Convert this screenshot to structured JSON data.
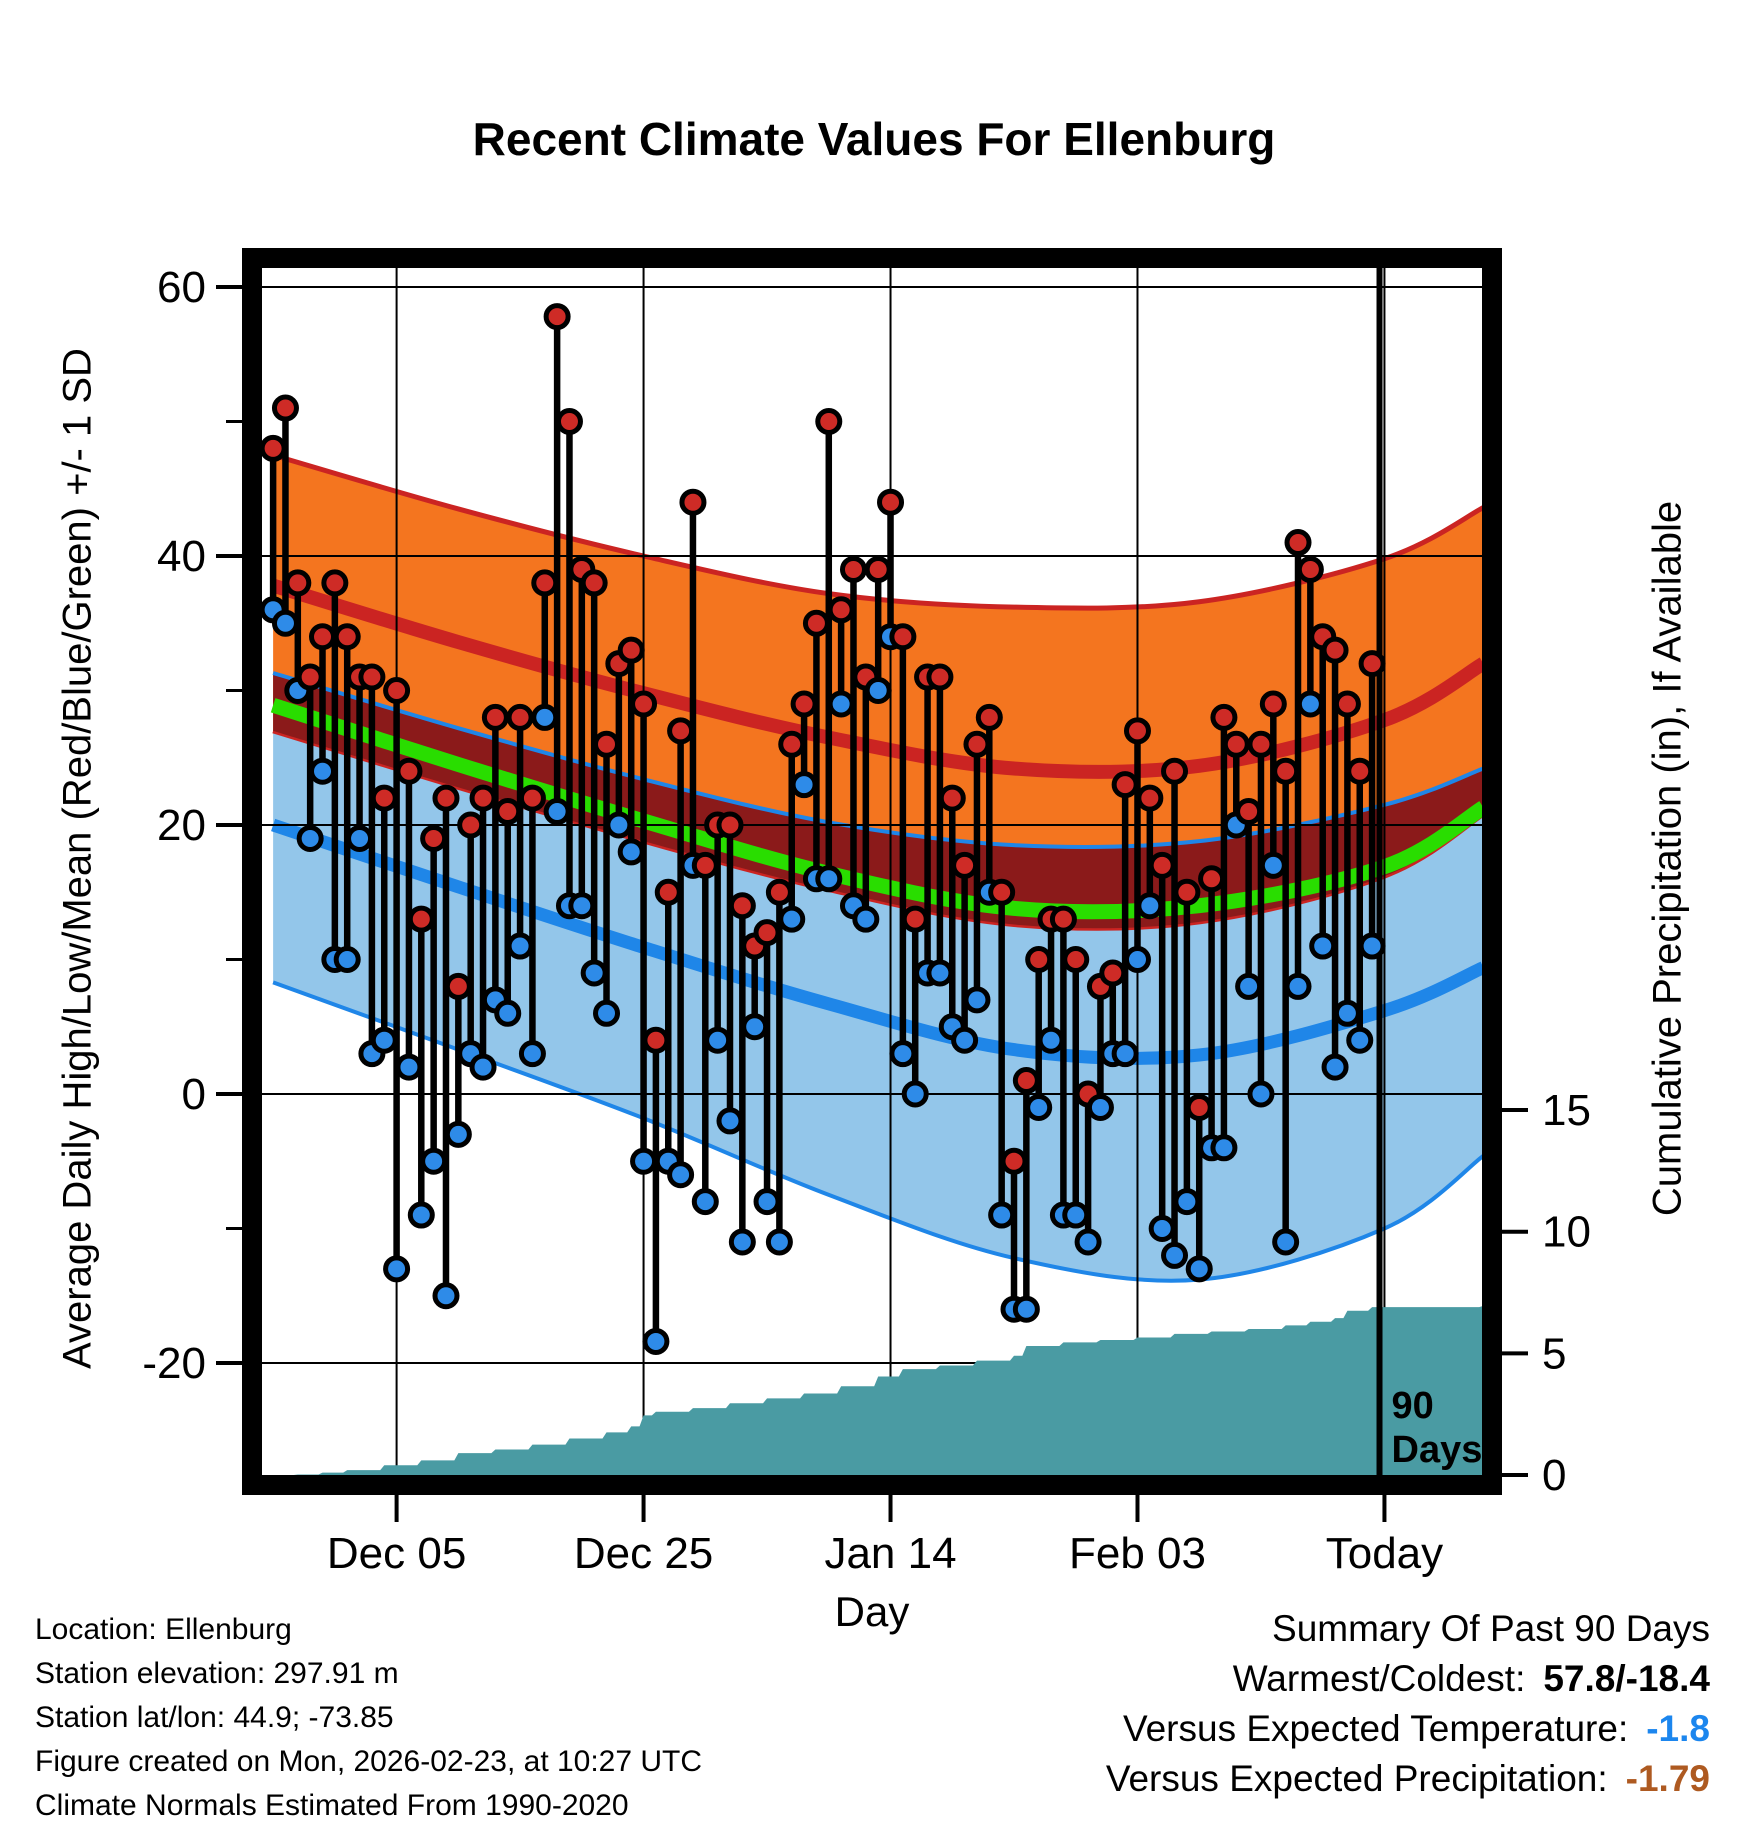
{
  "title": "Recent Climate Values For Ellenburg",
  "colors": {
    "high_band_fill": "#F4751F",
    "high_line": "#CB2422",
    "overlap_fill": "#8B1A1A",
    "mean_line": "#29DD00",
    "low_band_fill": "#93C6EA",
    "low_line": "#1F86E8",
    "marker_high": "#CE2B26",
    "marker_low": "#2E8BE8",
    "precip_fill": "#4A9BA3",
    "summary_temp_value": "#1C86EE",
    "summary_precip_value": "#AE5A21",
    "grid": "#000000"
  },
  "chart_data": {
    "type": "line",
    "subtype": "daily-high-low-stems-with-climate-normal-bands-and-cumulative-precip-area",
    "title": "Recent Climate Values For Ellenburg",
    "xlabel": "Day",
    "ylabel_left": "Average Daily High/Low/Mean (Red/Blue/Green) +/- 1 SD",
    "ylabel_right": "Cumulative Precipitation (in), If Available",
    "x_ticks": [
      {
        "day": 10,
        "label": "Dec 05"
      },
      {
        "day": 30,
        "label": "Dec 25"
      },
      {
        "day": 50,
        "label": "Jan 14"
      },
      {
        "day": 70,
        "label": "Feb 03"
      },
      {
        "day": 90,
        "label": "Today"
      }
    ],
    "x_domain_days": [
      -0.9,
      97.9
    ],
    "ylim_left": [
      -28,
      61.5
    ],
    "yticks_left": [
      60,
      40,
      20,
      0,
      -20
    ],
    "yticks_left_minor": [
      50,
      30,
      10,
      -10
    ],
    "yticks_right": [
      15,
      10,
      5,
      0
    ],
    "grid": true,
    "annotation_90days": {
      "line1": "90",
      "line2": "Days"
    },
    "daily": {
      "count": 90,
      "note": "day 0 = 90 days before figure date; stems are daily high (red) / low (blue), deg F",
      "high": [
        48,
        51,
        38,
        31,
        34,
        38,
        34,
        31,
        31,
        22,
        30,
        24,
        13,
        19,
        22,
        8,
        20,
        22,
        28,
        21,
        28,
        22,
        38,
        57.8,
        50,
        39,
        38,
        26,
        32,
        33,
        29,
        4,
        15,
        27,
        44,
        17,
        20,
        20,
        14,
        11,
        12,
        15,
        26,
        29,
        35,
        50,
        36,
        39,
        31,
        39,
        44,
        34,
        13,
        31,
        31,
        22,
        17,
        26,
        28,
        15,
        -5,
        1,
        10,
        13,
        13,
        10,
        0,
        8,
        9,
        23,
        27,
        22,
        17,
        24,
        15,
        -1,
        16,
        28,
        26,
        21,
        26,
        29,
        24,
        41,
        39,
        34,
        33,
        29,
        24,
        32
      ],
      "low": [
        36,
        35,
        30,
        19,
        24,
        10,
        10,
        19,
        3,
        4,
        -13,
        2,
        -9,
        -5,
        -15,
        -3,
        3,
        2,
        7,
        6,
        11,
        3,
        28,
        21,
        14,
        14,
        9,
        6,
        20,
        18,
        -5,
        -18.4,
        -5,
        -6,
        17,
        -8,
        4,
        -2,
        -11,
        5,
        -8,
        -11,
        13,
        23,
        16,
        16,
        29,
        14,
        13,
        30,
        34,
        3,
        0,
        9,
        9,
        5,
        4,
        7,
        15,
        -9,
        -16,
        -16,
        -1,
        4,
        -9,
        -9,
        -11,
        -1,
        3,
        3,
        10,
        14,
        -10,
        -12,
        -8,
        -13,
        -4,
        -4,
        20,
        8,
        0,
        17,
        -11,
        8,
        29,
        11,
        2,
        6,
        4,
        11
      ]
    },
    "normals": {
      "control_days": [
        0,
        15,
        30,
        45,
        60,
        75,
        90,
        98
      ],
      "high_upper": [
        47.5,
        43.5,
        40.0,
        37.2,
        36.2,
        36.6,
        39.8,
        43.6
      ],
      "high_mean": [
        37.8,
        33.6,
        29.8,
        26.5,
        24.2,
        24.4,
        27.8,
        32.0
      ],
      "high_lower": [
        27.0,
        22.8,
        18.8,
        15.2,
        12.6,
        12.8,
        16.2,
        20.8
      ],
      "mean": [
        28.9,
        24.5,
        20.3,
        16.4,
        13.8,
        14.0,
        16.9,
        21.3
      ],
      "low_upper": [
        31.3,
        27.2,
        23.4,
        20.2,
        18.5,
        18.8,
        21.5,
        24.2
      ],
      "low_mean": [
        20.0,
        15.4,
        10.9,
        6.7,
        3.3,
        2.9,
        6.2,
        9.4
      ],
      "low_lower": [
        8.3,
        3.3,
        -1.8,
        -7.5,
        -12.2,
        -13.8,
        -10.0,
        -4.6
      ]
    },
    "precip_cumulative": {
      "units": "in",
      "points": [
        [
          0,
          0
        ],
        [
          2,
          0.02
        ],
        [
          4,
          0.1
        ],
        [
          6,
          0.2
        ],
        [
          9,
          0.4
        ],
        [
          12,
          0.6
        ],
        [
          15,
          0.9
        ],
        [
          18,
          1.05
        ],
        [
          21,
          1.25
        ],
        [
          24,
          1.5
        ],
        [
          27,
          1.75
        ],
        [
          29,
          2.0
        ],
        [
          30,
          2.45
        ],
        [
          31,
          2.6
        ],
        [
          34,
          2.75
        ],
        [
          37,
          2.95
        ],
        [
          40,
          3.15
        ],
        [
          43,
          3.35
        ],
        [
          46,
          3.65
        ],
        [
          49,
          4.05
        ],
        [
          51,
          4.35
        ],
        [
          54,
          4.5
        ],
        [
          57,
          4.7
        ],
        [
          60,
          4.9
        ],
        [
          61,
          5.3
        ],
        [
          64,
          5.45
        ],
        [
          67,
          5.55
        ],
        [
          70,
          5.65
        ],
        [
          73,
          5.8
        ],
        [
          76,
          5.9
        ],
        [
          79,
          6.0
        ],
        [
          82,
          6.15
        ],
        [
          84,
          6.3
        ],
        [
          86,
          6.45
        ],
        [
          87,
          6.75
        ],
        [
          89,
          6.9
        ],
        [
          98,
          6.95
        ]
      ]
    }
  },
  "footer_left": {
    "lines": [
      "Location: Ellenburg",
      "Station elevation: 297.91 m",
      "Station lat/lon: 44.9; -73.85",
      "Figure created on Mon, 2026-02-23, at 10:27 UTC",
      "Climate Normals Estimated From 1990-2020"
    ]
  },
  "summary": {
    "title": "Summary Of Past 90 Days",
    "warmest_label": "Warmest/Coldest:",
    "warmest_value": "57.8/-18.4",
    "temp_label": "Versus Expected Temperature:",
    "temp_value": "-1.8",
    "precip_label": "Versus Expected Precipitation:",
    "precip_value": "-1.79"
  }
}
